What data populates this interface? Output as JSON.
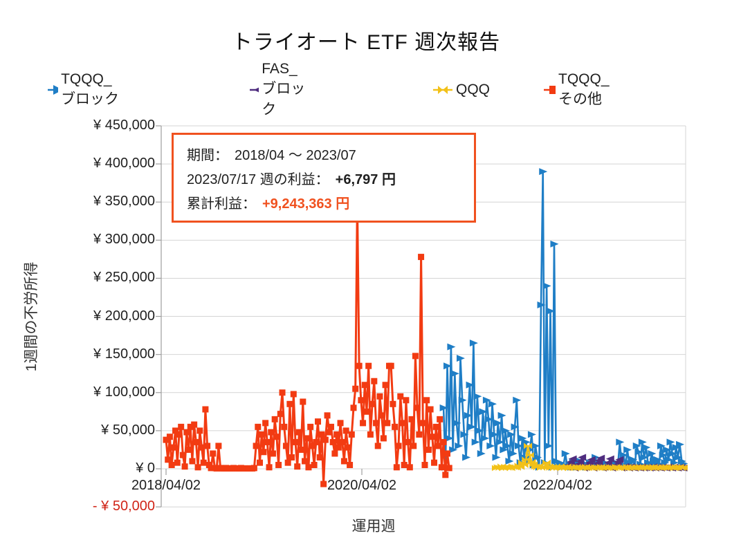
{
  "title": "トライオート ETF 週次報告",
  "colors": {
    "blue": "#1f7ec6",
    "purple": "#4f2d7f",
    "yellow": "#f2c119",
    "orange": "#f23b12",
    "annotation_accent": "#f0511f",
    "negative_label": "#d02417",
    "gridline": "#d4d4d4",
    "axis_line": "#9e9e9e"
  },
  "legend": [
    {
      "label": "TQQQ_ ブロック",
      "color": "#1f7ec6",
      "marker": "triangle-right"
    },
    {
      "label": "FAS_ ブロック",
      "color": "#4f2d7f",
      "marker": "triangle-left"
    },
    {
      "label": "QQQ",
      "color": "#f2c119",
      "marker": "bowtie"
    },
    {
      "label": "TQQQ_ その他",
      "color": "#f23b12",
      "marker": "square"
    }
  ],
  "annotation": {
    "period_label": "期間：",
    "period_value": "2018/04 ～ 2023/07",
    "week_label": "2023/07/17 週の利益：",
    "week_value": "+6,797 円",
    "total_label": "累計利益：",
    "total_value": "+9,243,363 円"
  },
  "y_axis": {
    "title": "1週間の不労所得",
    "ticks": [
      {
        "label": "¥ 450,000",
        "value": 450000
      },
      {
        "label": "¥ 400,000",
        "value": 400000
      },
      {
        "label": "¥ 350,000",
        "value": 350000
      },
      {
        "label": "¥ 300,000",
        "value": 300000
      },
      {
        "label": "¥ 250,000",
        "value": 250000
      },
      {
        "label": "¥ 200,000",
        "value": 200000
      },
      {
        "label": "¥ 150,000",
        "value": 150000
      },
      {
        "label": "¥ 100,000",
        "value": 100000
      },
      {
        "label": "¥ 50,000",
        "value": 50000
      },
      {
        "label": "¥ 0",
        "value": 0
      },
      {
        "label": "- ¥ 50,000",
        "value": -50000,
        "negative": true
      }
    ]
  },
  "x_axis": {
    "title": "運用週",
    "ticks": [
      {
        "label": "2018/04/02",
        "week": 0
      },
      {
        "label": "2020/04/02",
        "week": 104.43
      },
      {
        "label": "2022/04/02",
        "week": 208.86
      }
    ]
  },
  "chart_data": {
    "type": "line",
    "x_unit": "weeks since 2018/04/02",
    "ylim": [
      -50000,
      450000
    ],
    "x_range_weeks": [
      0,
      277
    ],
    "grid": true,
    "legend_position": "top",
    "series": [
      {
        "name": "TQQQ_ ブロック",
        "color": "#1f7ec6",
        "marker": "triangle-right",
        "start_week": 148,
        "values": [
          80000,
          2000,
          135000,
          40000,
          160000,
          25000,
          125000,
          60000,
          30000,
          145000,
          90000,
          45000,
          15000,
          70000,
          110000,
          55000,
          165000,
          35000,
          95000,
          50000,
          20000,
          75000,
          40000,
          90000,
          65000,
          30000,
          85000,
          45000,
          15000,
          60000,
          35000,
          70000,
          25000,
          50000,
          30000,
          10000,
          45000,
          20000,
          55000,
          90000,
          30000,
          8000,
          40000,
          15000,
          35000,
          10000,
          25000,
          45000,
          5000,
          30000,
          15000,
          2000,
          215000,
          390000,
          8000,
          240000,
          30000,
          207000,
          2000,
          295000,
          10000,
          3000,
          8000,
          2000,
          5000,
          20000,
          3000,
          6000,
          2000,
          8000,
          4000,
          2000,
          6000,
          10000,
          3000,
          7000,
          2000,
          5000,
          8000,
          3000,
          6000,
          15000,
          4000,
          2000,
          7000,
          3000,
          8000,
          2000,
          5000,
          3000,
          6000,
          2000,
          8000,
          4000,
          35000,
          6000,
          18000,
          3000,
          25000,
          8000,
          5000,
          12000,
          3000,
          30000,
          22000,
          6000,
          35000,
          15000,
          28000,
          8000,
          4000,
          20000,
          10000,
          5000,
          12000,
          6000,
          30000,
          18000,
          8000,
          25000,
          12000,
          35000,
          20000,
          8000,
          28000,
          15000,
          32000,
          10000,
          6797
        ]
      },
      {
        "name": "FAS_ ブロック",
        "color": "#4f2d7f",
        "marker": "triangle-left",
        "start_week": 214,
        "values": [
          2000,
          5000,
          9000,
          13000,
          1000,
          3000,
          6000,
          10000,
          15000,
          1000,
          2000,
          5000,
          8000,
          12000,
          1000,
          3000,
          7000,
          11000,
          14000,
          1000,
          2000,
          4000,
          8000,
          13000,
          1000,
          2000,
          5000,
          9000,
          12000,
          1000,
          1500,
          3000,
          2000,
          1000,
          2500,
          1500,
          1000,
          2000,
          1500,
          1000,
          2500,
          1000,
          1500,
          2000,
          1000,
          1500,
          2500,
          1000,
          2000,
          1500,
          1000,
          2000,
          1500,
          1000,
          2500,
          1500,
          1000,
          2000,
          1500,
          1000,
          2000,
          1500,
          1000
        ]
      },
      {
        "name": "QQQ",
        "color": "#f2c119",
        "marker": "bowtie",
        "start_week": 176,
        "values": [
          1000,
          2000,
          1500,
          3000,
          1000,
          2500,
          1500,
          2000,
          1000,
          3000,
          2000,
          1500,
          4000,
          2500,
          8000,
          5000,
          12000,
          30000,
          18000,
          9000,
          6000,
          3000,
          2000,
          4000,
          1500,
          2500,
          2000,
          8000,
          3000,
          1500,
          2000,
          1000,
          3000,
          1500,
          2500,
          1000,
          2000,
          1500,
          3000,
          1000,
          2000,
          1500,
          1000,
          2500,
          1500,
          2000,
          1000,
          1500,
          2500,
          1000,
          2000,
          1500,
          1000,
          2000,
          1500,
          1000,
          2500,
          1000,
          2000,
          1500,
          1000,
          2000,
          1500,
          1000,
          2500,
          1500,
          1000,
          2000,
          1500,
          1000,
          2500,
          1000,
          2000,
          1500,
          1000,
          2000,
          1500,
          2500,
          1000,
          2000,
          1500,
          1000,
          2000,
          1500,
          2500,
          1000,
          2000,
          1500,
          1000,
          2000,
          1500,
          2500,
          1000,
          2000,
          1500,
          1000,
          2000,
          1500,
          2500,
          1000,
          1500
        ]
      },
      {
        "name": "TQQQ_ その他",
        "color": "#f23b12",
        "marker": "square",
        "start_week": 0,
        "values": [
          38000,
          12000,
          42000,
          5000,
          28000,
          50000,
          8000,
          45000,
          55000,
          18000,
          3000,
          48000,
          25000,
          55000,
          10000,
          58000,
          35000,
          2000,
          50000,
          28000,
          8000,
          78000,
          30000,
          5000,
          1000,
          20000,
          1000,
          500,
          30000,
          1000,
          500,
          500,
          1000,
          500,
          500,
          500,
          1000,
          500,
          500,
          500,
          1000,
          500,
          500,
          500,
          500,
          500,
          500,
          1000,
          30000,
          55000,
          8000,
          45000,
          22000,
          60000,
          35000,
          2000,
          48000,
          20000,
          65000,
          42000,
          5000,
          72000,
          100000,
          55000,
          30000,
          8000,
          85000,
          15000,
          98000,
          35000,
          3000,
          48000,
          25000,
          88000,
          10000,
          40000,
          2000,
          55000,
          30000,
          5000,
          35000,
          62000,
          15000,
          45000,
          -20000,
          38000,
          70000,
          48000,
          55000,
          35000,
          20000,
          45000,
          28000,
          60000,
          35000,
          10000,
          50000,
          28000,
          5000,
          45000,
          80000,
          105000,
          350000,
          135000,
          90000,
          60000,
          110000,
          75000,
          135000,
          45000,
          85000,
          115000,
          60000,
          30000,
          95000,
          70000,
          40000,
          110000,
          60000,
          135000,
          135000,
          85000,
          55000,
          2000,
          30000,
          95000,
          60000,
          5000,
          90000,
          35000,
          2000,
          65000,
          30000,
          148000,
          80000,
          45000,
          278000,
          60000,
          5000,
          90000,
          25000,
          78000,
          42000,
          8000,
          55000,
          30000,
          65000,
          2000,
          35000,
          -8000,
          20000,
          1000
        ]
      }
    ]
  }
}
